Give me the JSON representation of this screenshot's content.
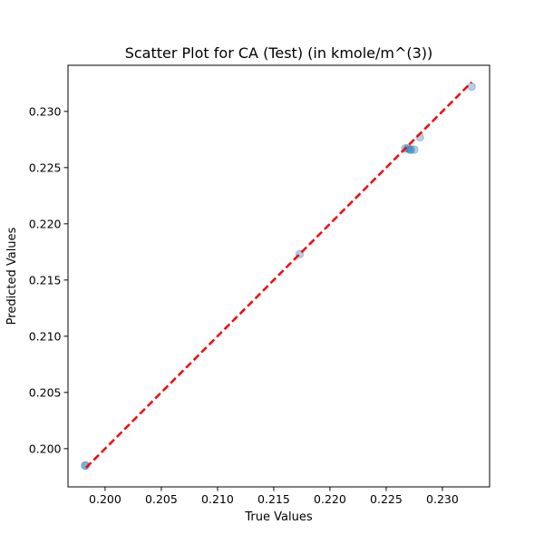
{
  "chart_data": {
    "type": "scatter",
    "title": "Scatter Plot for CA (Test) (in kmole/m^(3))",
    "xlabel": "True Values",
    "ylabel": "Predicted Values",
    "xlim": [
      0.1967,
      0.2342
    ],
    "ylim": [
      0.1966,
      0.2341
    ],
    "xticks": [
      "0.200",
      "0.205",
      "0.210",
      "0.215",
      "0.220",
      "0.225",
      "0.230"
    ],
    "yticks": [
      "0.200",
      "0.205",
      "0.210",
      "0.215",
      "0.220",
      "0.225",
      "0.230"
    ],
    "grid": false,
    "legend": "none",
    "points": {
      "x": [
        0.1982,
        0.1983,
        0.2173,
        0.2267,
        0.2269,
        0.2271,
        0.2272,
        0.2275,
        0.228,
        0.2326
      ],
      "y": [
        0.1985,
        0.1985,
        0.2173,
        0.2267,
        0.2267,
        0.2266,
        0.2266,
        0.2266,
        0.2277,
        0.2322
      ]
    },
    "reference_line": {
      "x": [
        0.1983,
        0.2326
      ],
      "y": [
        0.1983,
        0.2326
      ],
      "style": "dashed"
    },
    "colors": {
      "points": "#1f77b4",
      "reference_line": "#ff0000"
    }
  }
}
